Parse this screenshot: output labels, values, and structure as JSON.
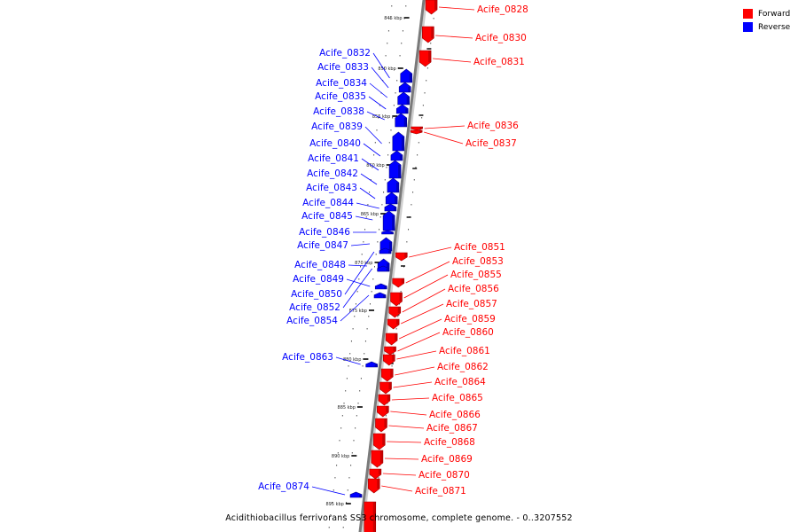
{
  "legend": {
    "items": [
      {
        "label": "Forward",
        "color": "#ff0000"
      },
      {
        "label": "Reverse",
        "color": "#0000ff"
      }
    ]
  },
  "caption": "Acidithiobacillus ferrivorans SS3 chromosome, complete genome. - 0..3207552",
  "strand_colors": {
    "forward": "#ff0000",
    "reverse": "#0000ff",
    "backbone": "#808080"
  },
  "tick_labels": [
    "845 kbp",
    "850 kbp",
    "855 kbp",
    "860 kbp",
    "865 kbp",
    "870 kbp",
    "875 kbp",
    "880 kbp",
    "885 kbp",
    "890 kbp",
    "895 kbp"
  ],
  "forward_genes": [
    "Acife_0828",
    "Acife_0830",
    "Acife_0831",
    "Acife_0836",
    "Acife_0837",
    "Acife_0851",
    "Acife_0853",
    "Acife_0855",
    "Acife_0856",
    "Acife_0857",
    "Acife_0859",
    "Acife_0860",
    "Acife_0861",
    "Acife_0862",
    "Acife_0864",
    "Acife_0865",
    "Acife_0866",
    "Acife_0867",
    "Acife_0868",
    "Acife_0869",
    "Acife_0870",
    "Acife_0871"
  ],
  "reverse_genes": [
    "Acife_0832",
    "Acife_0833",
    "Acife_0834",
    "Acife_0835",
    "Acife_0838",
    "Acife_0839",
    "Acife_0840",
    "Acife_0841",
    "Acife_0842",
    "Acife_0843",
    "Acife_0844",
    "Acife_0845",
    "Acife_0846",
    "Acife_0847",
    "Acife_0848",
    "Acife_0849",
    "Acife_0850",
    "Acife_0852",
    "Acife_0854",
    "Acife_0863",
    "Acife_0874"
  ]
}
